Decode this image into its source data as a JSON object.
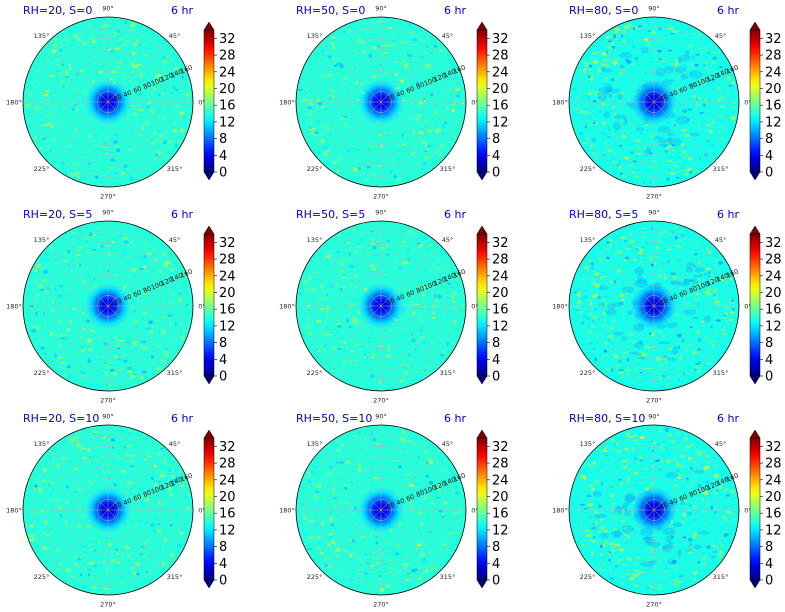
{
  "figure": {
    "time_label": "6 hr",
    "colormap": "jet",
    "background_fill": "#00bfff"
  },
  "chart_data": {
    "type": "polar-contour",
    "grid": "3x3",
    "grid_on": true,
    "theta_ticks_deg": [
      0,
      45,
      90,
      135,
      180,
      225,
      270,
      315
    ],
    "theta_tick_labels": [
      "0°",
      "45°",
      "90°",
      "135°",
      "180°",
      "225°",
      "270°",
      "315°"
    ],
    "radial_ticks": [
      20,
      40,
      60,
      80,
      100,
      120,
      140,
      160
    ],
    "radial_label_angle_deg": 22.5,
    "rlim": [
      0,
      160
    ],
    "colorbar": {
      "ticks": [
        0,
        4,
        8,
        12,
        16,
        20,
        24,
        28,
        32
      ],
      "range": [
        0,
        34
      ],
      "extend": "both"
    },
    "panels": [
      {
        "title": "RH=20, S=0",
        "time": "6 hr",
        "rh": 20,
        "s": 0,
        "center_value": 2,
        "background_value": 14,
        "speckle_intensity": 0.6
      },
      {
        "title": "RH=50, S=0",
        "time": "6 hr",
        "rh": 50,
        "s": 0,
        "center_value": 2,
        "background_value": 14,
        "speckle_intensity": 0.5
      },
      {
        "title": "RH=80, S=0",
        "time": "6 hr",
        "rh": 80,
        "s": 0,
        "center_value": 1.5,
        "background_value": 13.5,
        "speckle_intensity": 0.9
      },
      {
        "title": "RH=20, S=5",
        "time": "6 hr",
        "rh": 20,
        "s": 5,
        "center_value": 2,
        "background_value": 14,
        "speckle_intensity": 0.6
      },
      {
        "title": "RH=50, S=5",
        "time": "6 hr",
        "rh": 50,
        "s": 5,
        "center_value": 2,
        "background_value": 14,
        "speckle_intensity": 0.5
      },
      {
        "title": "RH=80, S=5",
        "time": "6 hr",
        "rh": 80,
        "s": 5,
        "center_value": 1.5,
        "background_value": 13.5,
        "speckle_intensity": 0.9
      },
      {
        "title": "RH=20, S=10",
        "time": "6 hr",
        "rh": 20,
        "s": 10,
        "center_value": 2,
        "background_value": 14,
        "speckle_intensity": 0.6
      },
      {
        "title": "RH=50, S=10",
        "time": "6 hr",
        "rh": 50,
        "s": 10,
        "center_value": 2,
        "background_value": 14,
        "speckle_intensity": 0.5
      },
      {
        "title": "RH=80, S=10",
        "time": "6 hr",
        "rh": 80,
        "s": 10,
        "center_value": 1.5,
        "background_value": 13.5,
        "speckle_intensity": 0.9
      }
    ]
  }
}
